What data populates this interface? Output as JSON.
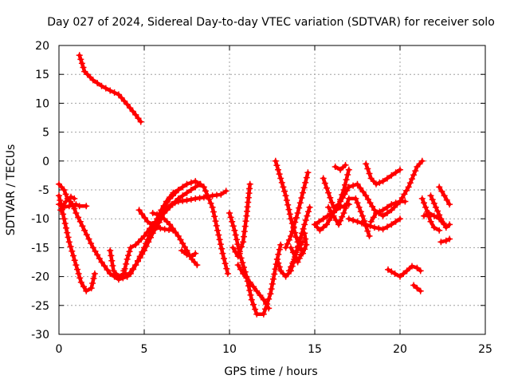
{
  "chart_data": {
    "type": "scatter",
    "title": "Day 027 of 2024, Sidereal Day-to-day VTEC variation (SDTVAR) for receiver solo",
    "xlabel": "GPS time / hours",
    "ylabel": "SDTVAR / TECUs",
    "xlim": [
      0,
      25
    ],
    "ylim": [
      -30,
      20
    ],
    "xticks": [
      "0",
      "5",
      "10",
      "15",
      "20",
      "25"
    ],
    "yticks": [
      "20",
      "15",
      "10",
      "5",
      "0",
      "-5",
      "-10",
      "-15",
      "-20",
      "-25",
      "-30"
    ],
    "grid": true,
    "color": "#ff0000",
    "marker": "plus",
    "series": [
      {
        "x": [
          1.2,
          1.5,
          2.0,
          2.5,
          3.0,
          3.5,
          4.0,
          4.5,
          4.8
        ],
        "y": [
          18.3,
          15.5,
          14.0,
          13.0,
          12.2,
          11.5,
          9.8,
          8.0,
          6.8
        ]
      },
      {
        "x": [
          0.0,
          0.3,
          0.6,
          1.0,
          1.3,
          1.6,
          1.9,
          2.1
        ],
        "y": [
          -6.0,
          -10.0,
          -14.0,
          -18.0,
          -21.0,
          -22.5,
          -22.0,
          -19.5
        ]
      },
      {
        "x": [
          0.0,
          0.3,
          0.5,
          0.8,
          1.0,
          1.5,
          2.0,
          2.5,
          3.0,
          3.5,
          4.0,
          4.5,
          5.0,
          5.5,
          6.0
        ],
        "y": [
          -4.0,
          -5.0,
          -6.5,
          -7.5,
          -9.0,
          -12.0,
          -15.0,
          -17.5,
          -19.5,
          -20.5,
          -20.0,
          -18.0,
          -15.5,
          -12.5,
          -10.0
        ]
      },
      {
        "x": [
          0.0,
          0.3,
          0.6,
          1.0,
          1.2,
          1.6
        ],
        "y": [
          -7.5,
          -8.0,
          -7.8,
          -7.5,
          -7.8,
          -7.8
        ]
      },
      {
        "x": [
          0.1,
          0.4,
          0.7,
          0.9
        ],
        "y": [
          -8.5,
          -7.0,
          -6.2,
          -6.5
        ]
      },
      {
        "x": [
          3.0,
          3.2,
          3.5,
          3.8,
          4.0,
          4.2,
          4.5,
          5.0,
          5.5,
          6.0,
          6.5,
          7.0,
          7.5,
          8.0,
          8.3
        ],
        "y": [
          -15.5,
          -19.0,
          -20.0,
          -19.5,
          -17.0,
          -15.0,
          -14.5,
          -13.0,
          -11.0,
          -9.5,
          -8.0,
          -6.5,
          -5.5,
          -4.5,
          -4.0
        ]
      },
      {
        "x": [
          3.8,
          4.0,
          4.2,
          4.5,
          5.0,
          5.5,
          6.0,
          6.5,
          7.0,
          7.5,
          8.0,
          8.5,
          9.0,
          9.3,
          9.6,
          9.9
        ],
        "y": [
          -19.0,
          -20.0,
          -19.5,
          -18.0,
          -15.0,
          -11.5,
          -8.5,
          -6.5,
          -5.0,
          -4.0,
          -3.5,
          -4.5,
          -8.0,
          -12.0,
          -16.0,
          -19.5
        ]
      },
      {
        "x": [
          4.7,
          5.2,
          5.7,
          6.2,
          6.7
        ],
        "y": [
          -8.5,
          -10.5,
          -11.5,
          -11.8,
          -12.0
        ]
      },
      {
        "x": [
          5.5,
          6.0,
          6.5,
          7.0,
          7.5,
          7.8,
          8.1
        ],
        "y": [
          -9.0,
          -9.5,
          -11.0,
          -13.0,
          -15.5,
          -17.0,
          -18.0
        ]
      },
      {
        "x": [
          5.8,
          6.2,
          6.6,
          7.0,
          7.5,
          8.0,
          8.5,
          9.0,
          9.5,
          9.8
        ],
        "y": [
          -10.5,
          -8.5,
          -7.5,
          -7.0,
          -6.8,
          -6.5,
          -6.3,
          -6.0,
          -5.8,
          -5.2
        ]
      },
      {
        "x": [
          6.0,
          6.3,
          6.7,
          7.0
        ],
        "y": [
          -8.5,
          -7.0,
          -5.5,
          -5.0
        ]
      },
      {
        "x": [
          7.2,
          7.5,
          7.8,
          8.0
        ],
        "y": [
          -15.5,
          -16.2,
          -16.5,
          -16.0
        ]
      },
      {
        "x": [
          10.0,
          10.3,
          10.6,
          11.0,
          11.3,
          11.6,
          12.0,
          12.4,
          12.8,
          13.0
        ],
        "y": [
          -9.0,
          -12.0,
          -16.0,
          -20.0,
          -24.0,
          -26.5,
          -26.5,
          -23.0,
          -17.0,
          -14.5
        ]
      },
      {
        "x": [
          10.2,
          10.5,
          10.8,
          11.0,
          11.2
        ],
        "y": [
          -15.0,
          -16.5,
          -14.0,
          -9.5,
          -4.0
        ]
      },
      {
        "x": [
          10.5,
          10.8,
          11.2,
          11.6,
          12.0,
          12.3
        ],
        "y": [
          -18.0,
          -19.5,
          -21.0,
          -22.5,
          -24.0,
          -25.5
        ]
      },
      {
        "x": [
          12.7,
          13.0,
          13.3,
          13.6,
          14.0,
          14.3,
          14.5,
          14.4
        ],
        "y": [
          0.0,
          -3.0,
          -6.0,
          -10.0,
          -14.0,
          -16.0,
          -14.5,
          -12.5
        ]
      },
      {
        "x": [
          12.8,
          13.0,
          13.3,
          13.6,
          14.0,
          14.3
        ],
        "y": [
          -17.0,
          -19.0,
          -20.0,
          -19.0,
          -15.0,
          -14.0
        ]
      },
      {
        "x": [
          13.3,
          13.6,
          14.0,
          14.3,
          14.6
        ],
        "y": [
          -15.0,
          -13.0,
          -9.0,
          -5.5,
          -2.0
        ]
      },
      {
        "x": [
          13.5,
          13.8,
          14.1,
          14.4,
          14.7
        ],
        "y": [
          -19.0,
          -17.0,
          -14.0,
          -11.0,
          -8.0
        ]
      },
      {
        "x": [
          13.6,
          14.0,
          14.3
        ],
        "y": [
          -15.0,
          -17.5,
          -15.5
        ]
      },
      {
        "x": [
          15.0,
          15.5,
          16.0,
          16.5,
          17.0
        ],
        "y": [
          -11.0,
          -10.0,
          -9.0,
          -8.0,
          -7.5
        ]
      },
      {
        "x": [
          15.0,
          15.3,
          15.7,
          16.0,
          16.5,
          17.0,
          17.5,
          18.0,
          18.5,
          19.0,
          19.5,
          20.0,
          20.5,
          21.0,
          21.3
        ],
        "y": [
          -11.0,
          -12.0,
          -11.0,
          -9.5,
          -7.0,
          -4.5,
          -4.0,
          -6.0,
          -8.5,
          -9.5,
          -8.5,
          -7.0,
          -4.5,
          -1.0,
          0.0
        ]
      },
      {
        "x": [
          15.5,
          15.8,
          16.1,
          16.4,
          16.7,
          17.0
        ],
        "y": [
          -3.0,
          -5.5,
          -8.0,
          -7.5,
          -5.0,
          -1.5
        ]
      },
      {
        "x": [
          15.8,
          16.1,
          16.4,
          16.7,
          17.0,
          17.4,
          17.8,
          18.2
        ],
        "y": [
          -8.0,
          -9.5,
          -11.0,
          -9.0,
          -6.5,
          -6.5,
          -9.5,
          -13.0
        ]
      },
      {
        "x": [
          16.2,
          16.5,
          16.8
        ],
        "y": [
          -1.0,
          -1.5,
          -0.7
        ]
      },
      {
        "x": [
          17.0,
          17.5,
          18.0,
          18.5,
          19.0,
          19.5,
          20.0
        ],
        "y": [
          -10.0,
          -10.5,
          -11.0,
          -11.5,
          -11.8,
          -11.0,
          -10.0
        ]
      },
      {
        "x": [
          18.0,
          18.3,
          18.6,
          19.0,
          19.5,
          20.0
        ],
        "y": [
          -0.5,
          -3.0,
          -4.0,
          -3.5,
          -2.5,
          -1.5
        ]
      },
      {
        "x": [
          18.3,
          18.6,
          19.0,
          19.5,
          20.0,
          20.3
        ],
        "y": [
          -10.5,
          -9.0,
          -8.5,
          -7.5,
          -7.0,
          -7.0
        ]
      },
      {
        "x": [
          19.3,
          19.7,
          20.0,
          20.4,
          20.7,
          21.0,
          21.2
        ],
        "y": [
          -18.8,
          -19.5,
          -20.0,
          -19.0,
          -18.2,
          -18.5,
          -19.0
        ]
      },
      {
        "x": [
          20.8,
          21.0,
          21.2
        ],
        "y": [
          -21.5,
          -22.0,
          -22.5
        ]
      },
      {
        "x": [
          21.3,
          21.5,
          21.8,
          22.0,
          22.3
        ],
        "y": [
          -6.5,
          -8.0,
          -10.5,
          -11.5,
          -12.0
        ]
      },
      {
        "x": [
          21.4,
          21.7,
          22.0,
          22.3,
          22.6
        ],
        "y": [
          -9.5,
          -9.0,
          -9.5,
          -10.0,
          -11.0
        ]
      },
      {
        "x": [
          21.8,
          22.1,
          22.4,
          22.7,
          22.9
        ],
        "y": [
          -6.0,
          -8.0,
          -10.0,
          -11.5,
          -11.0
        ]
      },
      {
        "x": [
          22.3,
          22.6,
          22.9
        ],
        "y": [
          -4.5,
          -6.0,
          -7.5
        ]
      },
      {
        "x": [
          22.4,
          22.7,
          22.9
        ],
        "y": [
          -14.0,
          -13.8,
          -13.5
        ]
      }
    ]
  }
}
